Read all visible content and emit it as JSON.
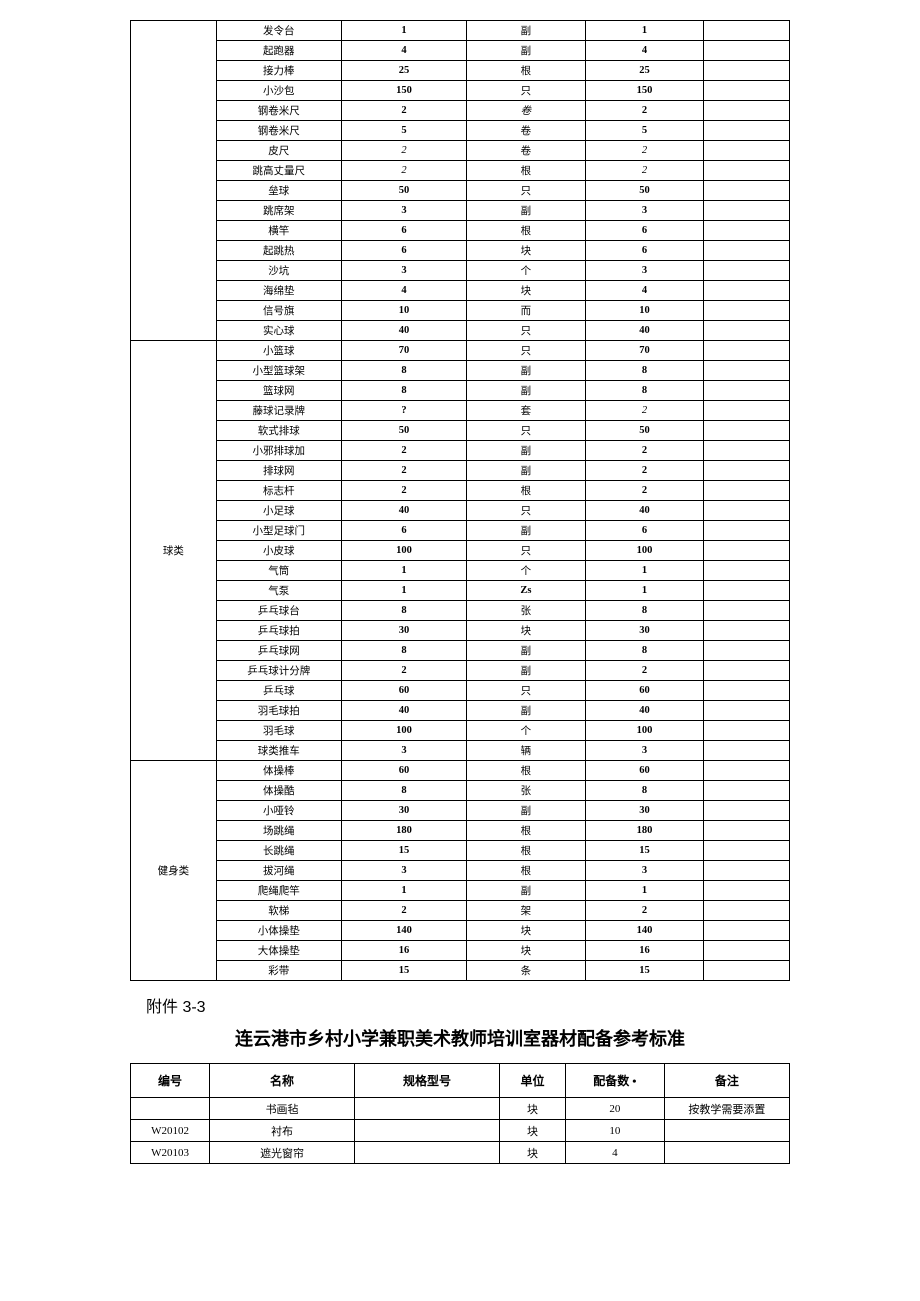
{
  "table1": {
    "sections": [
      {
        "category": "",
        "rows": [
          {
            "name": "发令台",
            "c3": "1",
            "c3b": true,
            "unit": "副",
            "c5": "1",
            "c5b": true
          },
          {
            "name": "起跑器",
            "c3": "4",
            "c3b": true,
            "unit": "副",
            "c5": "4",
            "c5b": true
          },
          {
            "name": "接力棒",
            "c3": "25",
            "c3b": true,
            "unit": "根",
            "c5": "25",
            "c5b": true
          },
          {
            "name": "小沙包",
            "c3": "150",
            "c3b": true,
            "unit": "只",
            "c5": "150",
            "c5b": true
          },
          {
            "name": "钢卷米尺",
            "c3": "2",
            "c3b": true,
            "unit": "卷",
            "ui": true,
            "c5": "2",
            "c5b": true
          },
          {
            "name": "钢卷米尺",
            "c3": "5",
            "c3b": true,
            "unit": "卷",
            "c5": "5",
            "c5b": true
          },
          {
            "name": "皮尺",
            "c3": "2",
            "c3i": true,
            "unit": "卷",
            "c5": "2",
            "c5i": true
          },
          {
            "name": "跳高丈量尺",
            "c3": "2",
            "c3i": true,
            "unit": "根",
            "c5": "2",
            "c5i": true
          },
          {
            "name": "垒球",
            "c3": "50",
            "c3b": true,
            "unit": "只",
            "c5": "50",
            "c5b": true
          },
          {
            "name": "跳席架",
            "c3": "3",
            "c3b": true,
            "unit": "副",
            "c5": "3",
            "c5b": true
          },
          {
            "name": "横竿",
            "c3": "6",
            "c3b": true,
            "unit": "根",
            "c5": "6",
            "c5b": true
          },
          {
            "name": "起跳热",
            "c3": "6",
            "c3b": true,
            "unit": "块",
            "c5": "6",
            "c5b": true
          },
          {
            "name": "沙坑",
            "c3": "3",
            "c3b": true,
            "unit": "个",
            "c5": "3",
            "c5b": true
          },
          {
            "name": "海绵垫",
            "c3": "4",
            "c3b": true,
            "unit": "块",
            "c5": "4",
            "c5b": true
          },
          {
            "name": "信号旗",
            "c3": "10",
            "c3b": true,
            "unit": "而",
            "c5": "10",
            "c5b": true
          },
          {
            "name": "实心球",
            "c3": "40",
            "c3b": true,
            "unit": "只",
            "c5": "40",
            "c5b": true
          }
        ]
      },
      {
        "category": "球类",
        "rows": [
          {
            "name": "小篮球",
            "c3": "70",
            "c3b": true,
            "unit": "只",
            "c5": "70",
            "c5b": true
          },
          {
            "name": "小型篮球架",
            "c3": "8",
            "c3b": true,
            "unit": "副",
            "c5": "8",
            "c5b": true
          },
          {
            "name": "篮球网",
            "c3": "8",
            "c3b": true,
            "unit": "副",
            "c5": "8",
            "c5b": true
          },
          {
            "name": "藤球记录牌",
            "c3": "?",
            "c3b": true,
            "unit": "套",
            "c5": "2",
            "c5i": true
          },
          {
            "name": "软式排球",
            "c3": "50",
            "c3b": true,
            "unit": "只",
            "c5": "50",
            "c5b": true
          },
          {
            "name": "小邪排球加",
            "c3": "2",
            "c3b": true,
            "unit": "副",
            "c5": "2",
            "c5b": true
          },
          {
            "name": "排球网",
            "c3": "2",
            "c3b": true,
            "unit": "副",
            "c5": "2",
            "c5b": true
          },
          {
            "name": "标志杆",
            "c3": "2",
            "c3b": true,
            "unit": "根",
            "c5": "2",
            "c5b": true
          },
          {
            "name": "小足球",
            "c3": "40",
            "c3b": true,
            "unit": "只",
            "c5": "40",
            "c5b": true
          },
          {
            "name": "小型足球门",
            "c3": "6",
            "c3b": true,
            "unit": "副",
            "c5": "6",
            "c5b": true
          },
          {
            "name": "小皮球",
            "c3": "100",
            "c3b": true,
            "unit": "只",
            "c5": "100",
            "c5b": true
          },
          {
            "name": "气筒",
            "c3": "1",
            "c3b": true,
            "unit": "个",
            "c5": "1",
            "c5b": true
          },
          {
            "name": "气泵",
            "c3": "1",
            "c3b": true,
            "unit": "Zs",
            "ub": true,
            "c5": "1",
            "c5b": true
          },
          {
            "name": "乒乓球台",
            "c3": "8",
            "c3b": true,
            "unit": "张",
            "c5": "8",
            "c5b": true
          },
          {
            "name": "乒乓球拍",
            "c3": "30",
            "c3b": true,
            "unit": "块",
            "c5": "30",
            "c5b": true
          },
          {
            "name": "乒乓球网",
            "c3": "8",
            "c3b": true,
            "unit": "副",
            "c5": "8",
            "c5b": true
          },
          {
            "name": "乒乓球计分牌",
            "c3": "2",
            "c3b": true,
            "unit": "副",
            "c5": "2",
            "c5b": true
          },
          {
            "name": "乒乓球",
            "c3": "60",
            "c3b": true,
            "unit": "只",
            "c5": "60",
            "c5b": true
          },
          {
            "name": "羽毛球拍",
            "c3": "40",
            "c3b": true,
            "unit": "副",
            "c5": "40",
            "c5b": true
          },
          {
            "name": "羽毛球",
            "c3": "100",
            "c3b": true,
            "unit": "个",
            "c5": "100",
            "c5b": true
          },
          {
            "name": "球类推车",
            "c3": "3",
            "c3b": true,
            "unit": "辆",
            "c5": "3",
            "c5b": true
          }
        ]
      },
      {
        "category": "健身类",
        "rows": [
          {
            "name": "体操棒",
            "c3": "60",
            "c3b": true,
            "unit": "根",
            "c5": "60",
            "c5b": true
          },
          {
            "name": "体操酷",
            "c3": "8",
            "c3b": true,
            "unit": "张",
            "c5": "8",
            "c5b": true
          },
          {
            "name": "小哑铃",
            "c3": "30",
            "c3b": true,
            "unit": "副",
            "c5": "30",
            "c5b": true
          },
          {
            "name": "场跳绳",
            "c3": "180",
            "c3b": true,
            "unit": "根",
            "c5": "180",
            "c5b": true
          },
          {
            "name": "长跳绳",
            "c3": "15",
            "c3b": true,
            "unit": "根",
            "c5": "15",
            "c5b": true
          },
          {
            "name": "拔河绳",
            "c3": "3",
            "c3b": true,
            "unit": "根",
            "c5": "3",
            "c5b": true
          },
          {
            "name": "爬绳爬竿",
            "c3": "1",
            "c3b": true,
            "unit": "副",
            "c5": "1",
            "c5b": true
          },
          {
            "name": "软梯",
            "c3": "2",
            "c3b": true,
            "unit": "架",
            "c5": "2",
            "c5b": true
          },
          {
            "name": "小体操垫",
            "c3": "140",
            "c3b": true,
            "unit": "块",
            "c5": "140",
            "c5b": true
          },
          {
            "name": "大体操垫",
            "c3": "16",
            "c3b": true,
            "unit": "块",
            "c5": "16",
            "c5b": true
          },
          {
            "name": "彩带",
            "c3": "15",
            "c3b": true,
            "unit": "条",
            "c5": "15",
            "c5b": true
          }
        ]
      }
    ]
  },
  "attachment_label": "附件 3-3",
  "section_title": "连云港市乡村小学兼职美术教师培训室器材配备参考标准",
  "table2": {
    "headers": [
      "编号",
      "名称",
      "规格型号",
      "单位",
      "配备数 •",
      "备注"
    ],
    "rows": [
      {
        "id": "",
        "name": "书画毡",
        "spec": "",
        "unit": "块",
        "qty": "20",
        "note": "按教学需要添置"
      },
      {
        "id": "W20102",
        "name": "衬布",
        "spec": "",
        "unit": "块",
        "qty": "10",
        "note": ""
      },
      {
        "id": "W20103",
        "name": "遮光窗帘",
        "spec": "",
        "unit": "块",
        "qty": "4",
        "note": ""
      }
    ]
  }
}
